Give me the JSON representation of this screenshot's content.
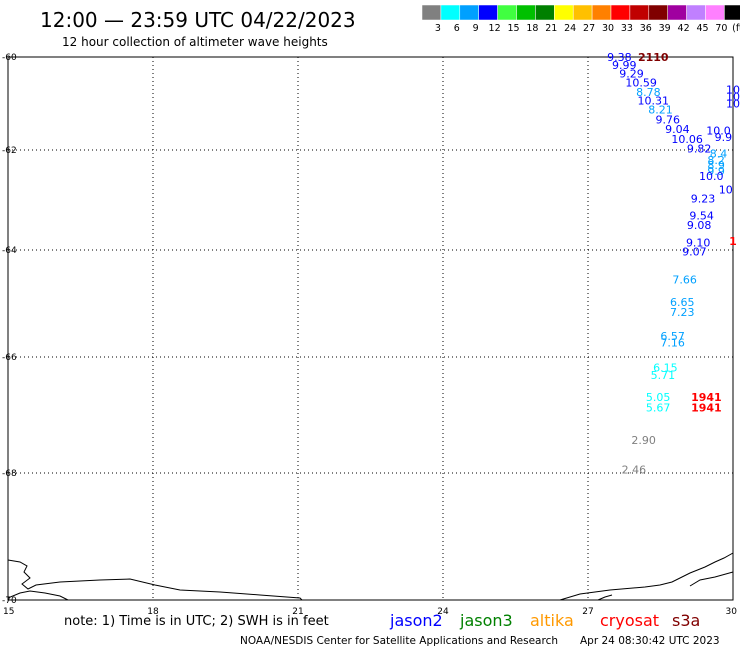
{
  "header": {
    "title": "12:00 — 23:59 UTC 04/22/2023",
    "subtitle": "12 hour collection of altimeter wave heights"
  },
  "legend": {
    "unit": "(ft)",
    "bins": [
      {
        "label": "3",
        "color": "#808080"
      },
      {
        "label": "6",
        "color": "#00ffff"
      },
      {
        "label": "9",
        "color": "#00a0ff"
      },
      {
        "label": "12",
        "color": "#0000ff"
      },
      {
        "label": "15",
        "color": "#40ff40"
      },
      {
        "label": "18",
        "color": "#00c000"
      },
      {
        "label": "21",
        "color": "#008000"
      },
      {
        "label": "24",
        "color": "#ffff00"
      },
      {
        "label": "27",
        "color": "#ffc000"
      },
      {
        "label": "30",
        "color": "#ff8000"
      },
      {
        "label": "33",
        "color": "#ff0000"
      },
      {
        "label": "36",
        "color": "#c00000"
      },
      {
        "label": "39",
        "color": "#800000"
      },
      {
        "label": "42",
        "color": "#a000a0"
      },
      {
        "label": "45",
        "color": "#c080ff"
      },
      {
        "label": "70",
        "color": "#ff80ff"
      },
      {
        "label": "",
        "color": "#000000"
      }
    ]
  },
  "map": {
    "lon_range": [
      15,
      30
    ],
    "lat_range": [
      -70,
      -60
    ],
    "lon_ticks": [
      "15",
      "18",
      "21",
      "24",
      "27",
      "30"
    ],
    "lat_ticks": [
      "-60",
      "-62",
      "-64",
      "-66",
      "-68",
      "-70"
    ],
    "gridlines": "dotted",
    "observations": [
      {
        "text": "9.38",
        "lon": 27.65,
        "lat": -59.98,
        "color": "#0000ff"
      },
      {
        "text": "2110",
        "lon": 28.35,
        "lat": -59.98,
        "color": "#800000",
        "bold": true
      },
      {
        "text": "9.99",
        "lon": 27.75,
        "lat": -60.17,
        "color": "#0000ff"
      },
      {
        "text": "9.29",
        "lon": 27.9,
        "lat": -60.36,
        "color": "#0000ff"
      },
      {
        "text": "10.59",
        "lon": 28.1,
        "lat": -60.55,
        "color": "#0000ff"
      },
      {
        "text": "8.78",
        "lon": 28.25,
        "lat": -60.75,
        "color": "#00a0ff"
      },
      {
        "text": "10.31",
        "lon": 28.35,
        "lat": -60.94,
        "color": "#0000ff"
      },
      {
        "text": "8.21",
        "lon": 28.5,
        "lat": -61.13,
        "color": "#00a0ff"
      },
      {
        "text": "9.76",
        "lon": 28.65,
        "lat": -61.34,
        "color": "#0000ff"
      },
      {
        "text": "9.04",
        "lon": 28.85,
        "lat": -61.55,
        "color": "#0000ff"
      },
      {
        "text": "10.06",
        "lon": 29.05,
        "lat": -61.76,
        "color": "#0000ff"
      },
      {
        "text": "9.82",
        "lon": 29.3,
        "lat": -61.97,
        "color": "#0000ff"
      },
      {
        "text": "9.23",
        "lon": 29.38,
        "lat": -62.97,
        "color": "#0000ff"
      },
      {
        "text": "9.54",
        "lon": 29.35,
        "lat": -63.31,
        "color": "#0000ff"
      },
      {
        "text": "9.08",
        "lon": 29.3,
        "lat": -63.5,
        "color": "#0000ff"
      },
      {
        "text": "9.10",
        "lon": 29.28,
        "lat": -63.85,
        "color": "#0000ff"
      },
      {
        "text": "9.07",
        "lon": 29.2,
        "lat": -64.03,
        "color": "#0000ff"
      },
      {
        "text": "7.66",
        "lon": 29.0,
        "lat": -64.55,
        "color": "#00a0ff"
      },
      {
        "text": "6.65",
        "lon": 28.95,
        "lat": -64.97,
        "color": "#00a0ff"
      },
      {
        "text": "7.23",
        "lon": 28.95,
        "lat": -65.16,
        "color": "#00a0ff"
      },
      {
        "text": "6.57",
        "lon": 28.75,
        "lat": -65.61,
        "color": "#00a0ff"
      },
      {
        "text": "7.16",
        "lon": 28.75,
        "lat": -65.73,
        "color": "#00a0ff"
      },
      {
        "text": "6.15",
        "lon": 28.6,
        "lat": -66.18,
        "color": "#00ffff"
      },
      {
        "text": "5.71",
        "lon": 28.55,
        "lat": -66.31,
        "color": "#00ffff"
      },
      {
        "text": "5.05",
        "lon": 28.45,
        "lat": -66.69,
        "color": "#00ffff"
      },
      {
        "text": "1941",
        "lon": 29.45,
        "lat": -66.69,
        "color": "#ff0000",
        "bold": true
      },
      {
        "text": "5.67",
        "lon": 28.45,
        "lat": -66.87,
        "color": "#00ffff"
      },
      {
        "text": "1941",
        "lon": 29.45,
        "lat": -66.87,
        "color": "#ff0000",
        "bold": true
      },
      {
        "text": "2.90",
        "lon": 28.15,
        "lat": -67.43,
        "color": "#808080"
      },
      {
        "text": "2.46",
        "lon": 27.95,
        "lat": -67.94,
        "color": "#808080"
      }
    ],
    "edge_observations": [
      {
        "text": "10",
        "lon": 30.0,
        "lat": -60.7,
        "color": "#0000ff"
      },
      {
        "text": "10",
        "lon": 30.0,
        "lat": -60.85,
        "color": "#0000ff"
      },
      {
        "text": "10",
        "lon": 30.0,
        "lat": -61.0,
        "color": "#0000ff"
      },
      {
        "text": "10.0",
        "lon": 29.7,
        "lat": -61.58,
        "color": "#0000ff"
      },
      {
        "text": "9.9",
        "lon": 29.8,
        "lat": -61.72,
        "color": "#0000ff"
      },
      {
        "text": "8.4",
        "lon": 29.7,
        "lat": -62.07,
        "color": "#00a0ff"
      },
      {
        "text": "8.2",
        "lon": 29.65,
        "lat": -62.2,
        "color": "#00a0ff"
      },
      {
        "text": "8.9",
        "lon": 29.65,
        "lat": -62.3,
        "color": "#00a0ff"
      },
      {
        "text": "9.9",
        "lon": 29.65,
        "lat": -62.42,
        "color": "#00a0ff"
      },
      {
        "text": "10.0",
        "lon": 29.55,
        "lat": -62.52,
        "color": "#0000ff"
      },
      {
        "text": "10",
        "lon": 29.85,
        "lat": -62.79,
        "color": "#0000ff"
      },
      {
        "text": "1",
        "lon": 30.0,
        "lat": -63.82,
        "color": "#ff0000",
        "bold": true
      }
    ]
  },
  "footer": {
    "note": "note: 1) Time is in UTC; 2) SWH is in feet",
    "satellites": [
      {
        "name": "jason2",
        "color": "#0000ff"
      },
      {
        "name": "jason3",
        "color": "#008000"
      },
      {
        "name": "altika",
        "color": "#ff9900"
      },
      {
        "name": "cryosat",
        "color": "#ff0000"
      },
      {
        "name": "s3a",
        "color": "#800000"
      }
    ],
    "credit": "NOAA/NESDIS Center for Satellite Applications and Research",
    "timestamp": "Apr 24 08:30:42 UTC 2023"
  }
}
